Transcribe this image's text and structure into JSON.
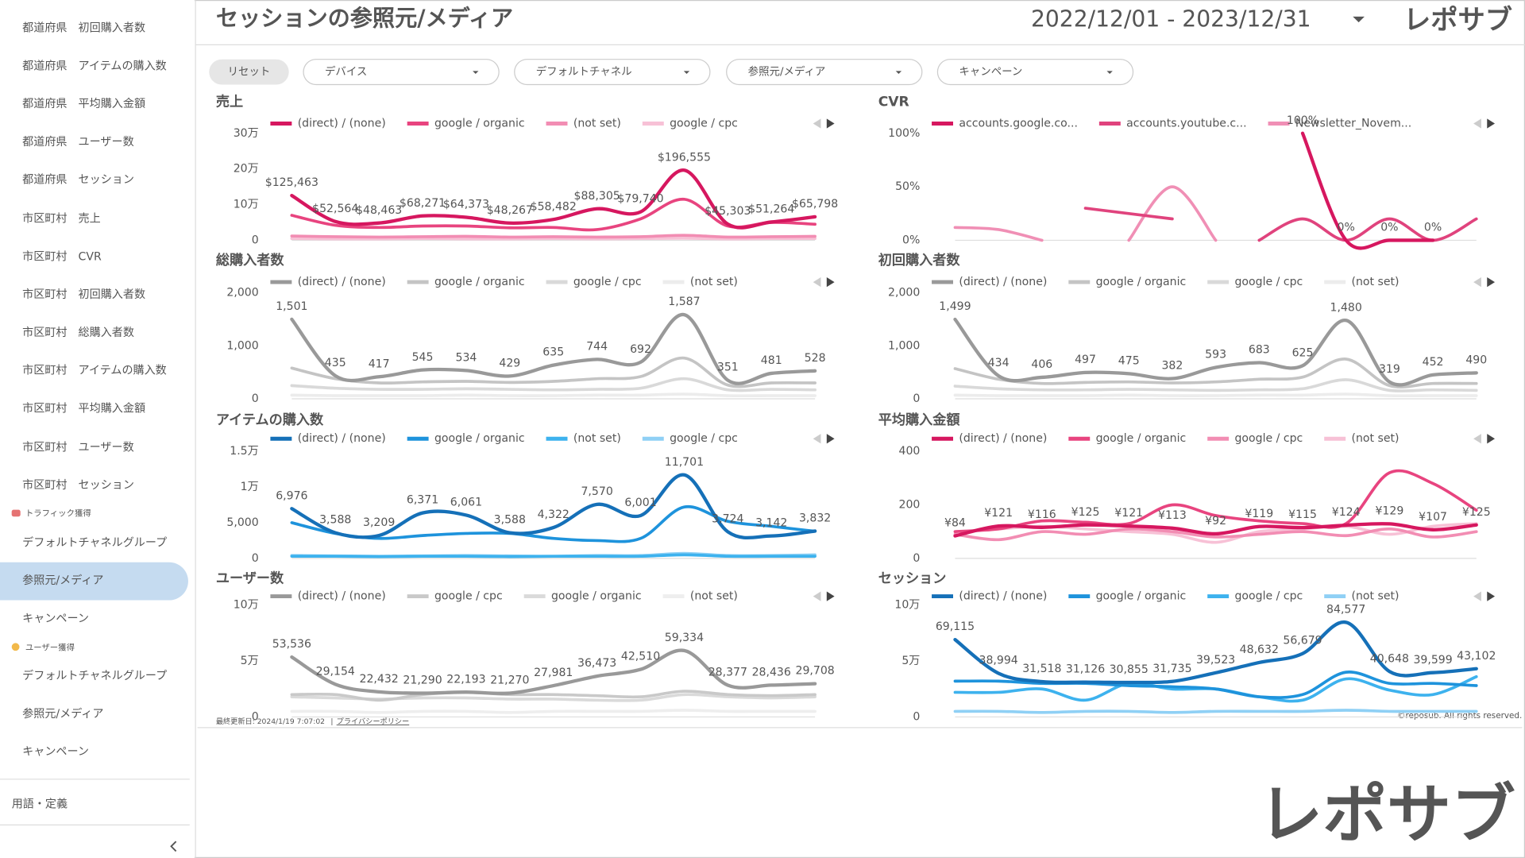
{
  "header": {
    "title": "セッションの参照元/メディア",
    "date_range": "2022/12/01 - 2023/12/31",
    "logo": "レポサブ"
  },
  "sidebar": {
    "items": [
      "都道府県　初回購入者数",
      "都道府県　アイテムの購入数",
      "都道府県　平均購入金額",
      "都道府県　ユーザー数",
      "都道府県　セッション",
      "市区町村　売上",
      "市区町村　CVR",
      "市区町村　初回購入者数",
      "市区町村　総購入者数",
      "市区町村　アイテムの購入数",
      "市区町村　平均購入金額",
      "市区町村　ユーザー数",
      "市区町村　セッション"
    ],
    "traffic_section": "トラフィック獲得",
    "traffic_items": [
      "デフォルトチャネルグループ",
      "参照元/メディア",
      "キャンペーン"
    ],
    "user_section": "ユーザー獲得",
    "user_items": [
      "デフォルトチャネルグループ",
      "参照元/メディア",
      "キャンペーン"
    ],
    "glossary": "用語・定義"
  },
  "filters": {
    "reset": "リセット",
    "dropdowns": [
      "デバイス",
      "デフォルトチャネル",
      "参照元/メディア",
      "キャンペーン"
    ]
  },
  "footer": {
    "updated": "最終更新日: 2024/1/19 7:07:02",
    "privacy": "プライバシーポリシー",
    "copyright": "©reposub. All rights reserved."
  },
  "watermark": "レポサブ",
  "chart_data": [
    {
      "type": "line",
      "title": "売上",
      "ylim": [
        0,
        300000
      ],
      "yticks": [
        0,
        {
          "value": 100000,
          "label": "10万"
        },
        {
          "value": 200000,
          "label": "20万"
        },
        {
          "value": 300000,
          "label": "30万"
        }
      ],
      "series": [
        {
          "name": "(direct) / (none)",
          "color": "#d6175f",
          "values": [
            125463,
            52564,
            48463,
            68271,
            64373,
            48267,
            58482,
            88305,
            79740,
            196555,
            45303,
            51264,
            65798
          ],
          "value_labels": [
            "$125,463",
            "$52,564",
            "$48,463",
            "$68,271",
            "$64,373",
            "$48,267",
            "$58,482",
            "$88,305",
            "$79,740",
            "$196,555",
            "$45,303",
            "$51,264",
            "$65,798"
          ]
        },
        {
          "name": "google / organic",
          "color": "#e8447f",
          "values": [
            70000,
            42000,
            36000,
            40000,
            40000,
            35000,
            36000,
            30000,
            60000,
            115000,
            40000,
            50000,
            45000
          ]
        },
        {
          "name": "(not set)",
          "color": "#f28db3",
          "values": [
            12000,
            10000,
            9000,
            10000,
            11000,
            9000,
            10000,
            9000,
            10000,
            14000,
            9000,
            10000,
            11000
          ]
        },
        {
          "name": "google / cpc",
          "color": "#f7c1d6",
          "values": [
            5000,
            4000,
            4000,
            5000,
            4000,
            4000,
            5000,
            4000,
            5000,
            6000,
            4000,
            5000,
            5000
          ]
        }
      ]
    },
    {
      "type": "line",
      "title": "CVR",
      "ylim": [
        0,
        100
      ],
      "yticks": [
        {
          "value": 0,
          "label": "0%"
        },
        {
          "value": 50,
          "label": "50%"
        },
        {
          "value": 100,
          "label": "100%"
        }
      ],
      "series": [
        {
          "name": "accounts.google.co...",
          "color": "#d6175f",
          "values": [
            null,
            null,
            null,
            null,
            null,
            null,
            null,
            null,
            100,
            0,
            0,
            0,
            null
          ],
          "value_labels": [
            null,
            null,
            null,
            null,
            null,
            null,
            null,
            null,
            "100%",
            "0%",
            "0%",
            "0%",
            null
          ]
        },
        {
          "name": "accounts.youtube.c...",
          "color": "#e0437d",
          "values": [
            null,
            null,
            null,
            30,
            25,
            20,
            null,
            0,
            20,
            0,
            20,
            0,
            20
          ]
        },
        {
          "name": "Newsletter_Novem...",
          "color": "#f08fb5",
          "values": [
            12,
            10,
            0,
            null,
            0,
            50,
            0,
            null,
            null,
            null,
            null,
            null,
            null
          ]
        }
      ]
    },
    {
      "type": "line",
      "title": "総購入者数",
      "ylim": [
        0,
        2000
      ],
      "yticks": [
        0,
        {
          "value": 1000,
          "label": "1,000"
        },
        {
          "value": 2000,
          "label": "2,000"
        }
      ],
      "series": [
        {
          "name": "(direct) / (none)",
          "color": "#999999",
          "values": [
            1501,
            435,
            417,
            545,
            534,
            429,
            635,
            744,
            692,
            1587,
            351,
            481,
            528
          ],
          "value_labels": [
            "1,501",
            "435",
            "417",
            "545",
            "534",
            "429",
            "635",
            "744",
            "692",
            "1,587",
            "351",
            "481",
            "528"
          ]
        },
        {
          "name": "google / organic",
          "color": "#c4c4c4",
          "values": [
            580,
            380,
            300,
            320,
            330,
            310,
            330,
            380,
            420,
            770,
            260,
            300,
            300
          ]
        },
        {
          "name": "google / cpc",
          "color": "#d9d9d9",
          "values": [
            250,
            200,
            180,
            180,
            190,
            180,
            170,
            180,
            200,
            380,
            170,
            180,
            170
          ]
        },
        {
          "name": "(not set)",
          "color": "#ececec",
          "values": [
            70,
            60,
            60,
            60,
            70,
            60,
            60,
            70,
            70,
            90,
            60,
            60,
            60
          ]
        }
      ]
    },
    {
      "type": "line",
      "title": "初回購入者数",
      "ylim": [
        0,
        2000
      ],
      "yticks": [
        0,
        {
          "value": 1000,
          "label": "1,000"
        },
        {
          "value": 2000,
          "label": "2,000"
        }
      ],
      "series": [
        {
          "name": "(direct) / (none)",
          "color": "#999999",
          "values": [
            1499,
            434,
            406,
            497,
            475,
            382,
            593,
            683,
            625,
            1480,
            319,
            452,
            490
          ],
          "value_labels": [
            "1,499",
            "434",
            "406",
            "497",
            "475",
            "382",
            "593",
            "683",
            "625",
            "1,480",
            "319",
            "452",
            "490"
          ]
        },
        {
          "name": "google / organic",
          "color": "#c4c4c4",
          "values": [
            570,
            370,
            290,
            310,
            320,
            300,
            320,
            370,
            410,
            750,
            250,
            290,
            290
          ]
        },
        {
          "name": "google / cpc",
          "color": "#d9d9d9",
          "values": [
            240,
            190,
            170,
            170,
            180,
            170,
            160,
            170,
            190,
            360,
            160,
            170,
            160
          ]
        },
        {
          "name": "(not set)",
          "color": "#ececec",
          "values": [
            70,
            60,
            60,
            60,
            70,
            60,
            60,
            70,
            70,
            90,
            60,
            60,
            60
          ]
        }
      ]
    },
    {
      "type": "line",
      "title": "アイテムの購入数",
      "ylim": [
        0,
        15000
      ],
      "yticks": [
        0,
        {
          "value": 5000,
          "label": "5,000"
        },
        {
          "value": 10000,
          "label": "1万"
        },
        {
          "value": 15000,
          "label": "1.5万"
        }
      ],
      "series": [
        {
          "name": "(direct) / (none)",
          "color": "#1570b8",
          "values": [
            6976,
            3588,
            3209,
            6371,
            6061,
            3588,
            4322,
            7570,
            6001,
            11701,
            3724,
            3142,
            3832
          ],
          "value_labels": [
            "6,976",
            "3,588",
            "3,209",
            "6,371",
            "6,061",
            "3,588",
            "4,322",
            "7,570",
            "6,001",
            "11,701",
            "3,724",
            "3,142",
            "3,832"
          ]
        },
        {
          "name": "google / organic",
          "color": "#1e93dc",
          "values": [
            5000,
            3500,
            2800,
            3200,
            3500,
            3500,
            2800,
            2500,
            2800,
            7200,
            5200,
            4500,
            3800
          ]
        },
        {
          "name": "(not set)",
          "color": "#3db2ee",
          "values": [
            300,
            300,
            250,
            300,
            300,
            250,
            300,
            300,
            300,
            500,
            300,
            300,
            300
          ]
        },
        {
          "name": "google / cpc",
          "color": "#8fd0f5",
          "values": [
            400,
            350,
            300,
            350,
            400,
            350,
            300,
            400,
            400,
            700,
            400,
            400,
            500
          ]
        }
      ]
    },
    {
      "type": "line",
      "title": "平均購入金額",
      "ylim": [
        0,
        400
      ],
      "yticks": [
        0,
        200,
        400
      ],
      "series": [
        {
          "name": "(direct) / (none)",
          "color": "#d6175f",
          "values": [
            84,
            121,
            116,
            125,
            121,
            113,
            92,
            119,
            115,
            124,
            129,
            107,
            125
          ],
          "value_labels": [
            "¥84",
            "¥121",
            "¥116",
            "¥125",
            "¥121",
            "¥113",
            "¥92",
            "¥119",
            "¥115",
            "¥124",
            "¥129",
            "¥107",
            "¥125"
          ]
        },
        {
          "name": "google / organic",
          "color": "#e8447f",
          "values": [
            100,
            110,
            140,
            135,
            130,
            200,
            160,
            140,
            130,
            130,
            320,
            280,
            180
          ]
        },
        {
          "name": "google / cpc",
          "color": "#f28db3",
          "values": [
            90,
            70,
            100,
            90,
            110,
            100,
            80,
            90,
            100,
            85,
            110,
            80,
            100
          ]
        },
        {
          "name": "(not set)",
          "color": "#f7c1d6",
          "values": [
            100,
            110,
            120,
            110,
            100,
            90,
            60,
            100,
            110,
            120,
            90,
            120,
            130
          ]
        }
      ]
    },
    {
      "type": "line",
      "title": "ユーザー数",
      "ylim": [
        0,
        100000
      ],
      "yticks": [
        0,
        {
          "value": 50000,
          "label": "5万"
        },
        {
          "value": 100000,
          "label": "10万"
        }
      ],
      "series": [
        {
          "name": "(direct) / (none)",
          "color": "#999999",
          "values": [
            53536,
            29154,
            22432,
            21290,
            22193,
            21270,
            27981,
            36473,
            42510,
            59334,
            28377,
            28436,
            29708
          ],
          "value_labels": [
            "53,536",
            "29,154",
            "22,432",
            "21,290",
            "22,193",
            "21,270",
            "27,981",
            "36,473",
            "42,510",
            "59,334",
            "28,377",
            "28,436",
            "29,708"
          ]
        },
        {
          "name": "google / cpc",
          "color": "#c9c9c9",
          "values": [
            20000,
            20000,
            15000,
            20000,
            22000,
            20000,
            20000,
            19000,
            18000,
            23000,
            20000,
            19000,
            20000
          ]
        },
        {
          "name": "google / organic",
          "color": "#dadada",
          "values": [
            18000,
            17000,
            16000,
            17000,
            17000,
            16000,
            16000,
            15000,
            15000,
            20000,
            18000,
            17000,
            18000
          ]
        },
        {
          "name": "(not set)",
          "color": "#eeeeee",
          "values": [
            5000,
            5000,
            4000,
            5000,
            5000,
            4000,
            5000,
            5000,
            5000,
            6000,
            5000,
            5000,
            5000
          ]
        }
      ]
    },
    {
      "type": "line",
      "title": "セッション",
      "ylim": [
        0,
        100000
      ],
      "yticks": [
        0,
        {
          "value": 50000,
          "label": "5万"
        },
        {
          "value": 100000,
          "label": "10万"
        }
      ],
      "series": [
        {
          "name": "(direct) / (none)",
          "color": "#1570b8",
          "values": [
            69115,
            38994,
            31518,
            31126,
            30855,
            31735,
            39523,
            48632,
            56679,
            84577,
            40648,
            39599,
            43102
          ],
          "value_labels": [
            "69,115",
            "38,994",
            "31,518",
            "31,126",
            "30,855",
            "31,735",
            "39,523",
            "48,632",
            "56,679",
            "84,577",
            "40,648",
            "39,599",
            "43,102"
          ]
        },
        {
          "name": "google / organic",
          "color": "#1e93dc",
          "values": [
            32000,
            32000,
            30000,
            30000,
            28000,
            27000,
            25000,
            18000,
            20000,
            40000,
            30000,
            30000,
            28000
          ]
        },
        {
          "name": "google / cpc",
          "color": "#3db2ee",
          "values": [
            22000,
            22000,
            25000,
            15000,
            30000,
            25000,
            25000,
            18000,
            15000,
            34000,
            24000,
            20000,
            36000
          ]
        },
        {
          "name": "(not set)",
          "color": "#8fd0f5",
          "values": [
            5000,
            5000,
            4000,
            5000,
            5000,
            4000,
            5000,
            5000,
            5000,
            6000,
            5000,
            5000,
            5000
          ]
        }
      ]
    }
  ]
}
